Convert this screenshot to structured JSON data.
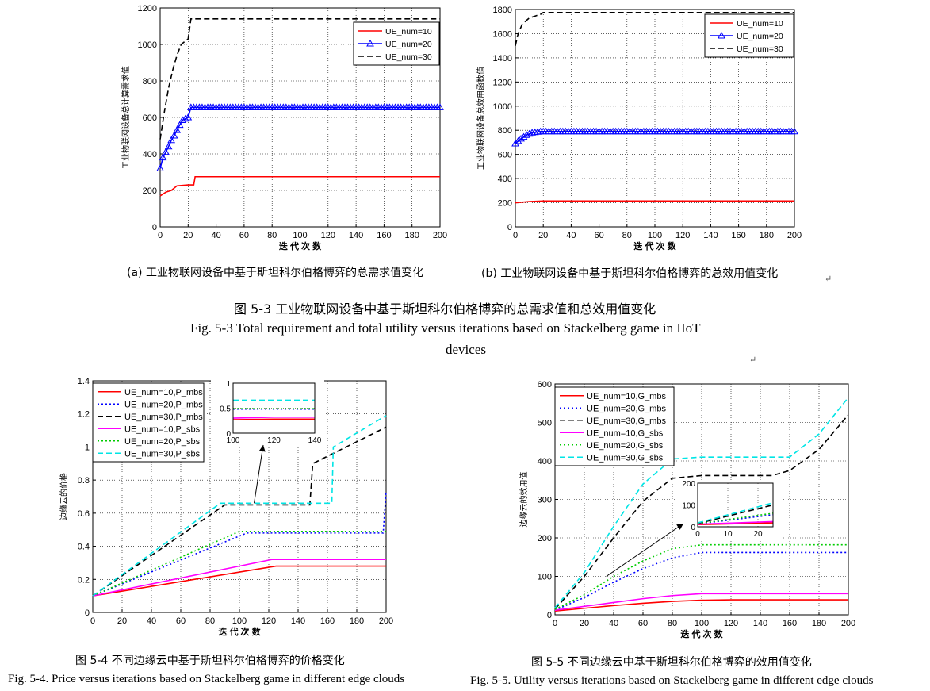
{
  "figures": {
    "fig3a_caption": "(a)  工业物联网设备中基于斯坦科尔伯格博弈的总需求值变化",
    "fig3b_caption": "(b)  工业物联网设备中基于斯坦科尔伯格博弈的总效用值变化",
    "fig3_title_cn": "图 5-3  工业物联网设备中基于斯坦科尔伯格博弈的总需求值和总效用值变化",
    "fig3_title_en": "Fig. 5-3 Total requirement and total utility versus iterations based on Stackelberg game in IIoT",
    "fig3_title_en2": "devices",
    "fig4_title_cn": "图 5-4 不同边缘云中基于斯坦科尔伯格博弈的价格变化",
    "fig4_title_en": "Fig. 5-4. Price versus iterations based on Stackelberg game in different edge clouds",
    "fig5_title_cn": "图 5-5 不同边缘云中基于斯坦科尔伯格博弈的效用值变化",
    "fig5_title_en": "Fig. 5-5. Utility versus iterations based on Stackelberg game in different edge clouds",
    "return_mark": "↵"
  },
  "chart_data": [
    {
      "type": "line",
      "xlabel": "迭 代 次 数",
      "ylabel": "工业物联网设备总计算需求值",
      "xlim": [
        0,
        200
      ],
      "ylim": [
        0,
        1200
      ],
      "xticks": [
        0,
        20,
        40,
        60,
        80,
        100,
        120,
        140,
        160,
        180,
        200
      ],
      "yticks": [
        0,
        200,
        400,
        600,
        800,
        1000,
        1200
      ],
      "grid": true,
      "legend_position": "top-right",
      "series": [
        {
          "name": "UE_num=10",
          "color": "#ff0000",
          "style": "solid",
          "marker": "",
          "points": [
            [
              0,
              170
            ],
            [
              4,
              190
            ],
            [
              8,
              200
            ],
            [
              12,
              225
            ],
            [
              20,
              230
            ],
            [
              24,
              230
            ],
            [
              25,
              275
            ],
            [
              200,
              275
            ]
          ]
        },
        {
          "name": "UE_num=20",
          "color": "#0000ff",
          "style": "solid",
          "marker": "triangle",
          "points": [
            [
              0,
              320
            ],
            [
              2,
              380
            ],
            [
              4,
              410
            ],
            [
              6,
              440
            ],
            [
              8,
              475
            ],
            [
              10,
              500
            ],
            [
              13,
              545
            ],
            [
              16,
              585
            ],
            [
              20,
              600
            ],
            [
              22,
              655
            ],
            [
              200,
              655
            ]
          ]
        },
        {
          "name": "UE_num=30",
          "color": "#000000",
          "style": "dashed",
          "marker": "",
          "points": [
            [
              0,
              480
            ],
            [
              3,
              630
            ],
            [
              6,
              760
            ],
            [
              9,
              860
            ],
            [
              12,
              940
            ],
            [
              15,
              1000
            ],
            [
              20,
              1030
            ],
            [
              22,
              1140
            ],
            [
              200,
              1140
            ]
          ]
        }
      ]
    },
    {
      "type": "line",
      "xlabel": "迭 代 次 数",
      "ylabel": "工业物联网设备总效用函数值",
      "xlim": [
        0,
        200
      ],
      "ylim": [
        0,
        1800
      ],
      "xticks": [
        0,
        20,
        40,
        60,
        80,
        100,
        120,
        140,
        160,
        180,
        200
      ],
      "yticks": [
        0,
        200,
        400,
        600,
        800,
        1000,
        1200,
        1400,
        1600,
        1800
      ],
      "grid": true,
      "legend_position": "top-right",
      "series": [
        {
          "name": "UE_num=10",
          "color": "#ff0000",
          "style": "solid",
          "marker": "",
          "points": [
            [
              0,
              200
            ],
            [
              10,
              210
            ],
            [
              20,
              215
            ],
            [
              200,
              215
            ]
          ]
        },
        {
          "name": "UE_num=20",
          "color": "#0000ff",
          "style": "solid",
          "marker": "triangle",
          "points": [
            [
              0,
              690
            ],
            [
              4,
              730
            ],
            [
              8,
              760
            ],
            [
              12,
              780
            ],
            [
              18,
              790
            ],
            [
              200,
              790
            ]
          ]
        },
        {
          "name": "UE_num=30",
          "color": "#000000",
          "style": "dashed",
          "marker": "",
          "points": [
            [
              0,
              1500
            ],
            [
              2,
              1600
            ],
            [
              5,
              1680
            ],
            [
              10,
              1730
            ],
            [
              18,
              1760
            ],
            [
              20,
              1775
            ],
            [
              200,
              1775
            ]
          ]
        }
      ]
    },
    {
      "type": "line",
      "xlabel": "迭 代 次 数",
      "ylabel": "边缘云的价格",
      "xlim": [
        0,
        200
      ],
      "ylim": [
        0,
        1.4
      ],
      "xticks": [
        0,
        20,
        40,
        60,
        80,
        100,
        120,
        140,
        160,
        180,
        200
      ],
      "yticks": [
        0,
        0.2,
        0.4,
        0.6,
        0.8,
        1,
        1.2,
        1.4
      ],
      "grid": true,
      "legend_position": "top-left",
      "series": [
        {
          "name": "UE_num=10,P_mbs",
          "color": "#ff0000",
          "style": "solid",
          "points": [
            [
              0,
              0.1
            ],
            [
              125,
              0.28
            ],
            [
              200,
              0.28
            ]
          ]
        },
        {
          "name": "UE_num=20,P_mbs",
          "color": "#0000ff",
          "style": "dotted",
          "points": [
            [
              0,
              0.1
            ],
            [
              105,
              0.48
            ],
            [
              198,
              0.48
            ],
            [
              200,
              0.73
            ]
          ]
        },
        {
          "name": "UE_num=30,P_mbs",
          "color": "#000000",
          "style": "dashed",
          "points": [
            [
              0,
              0.1
            ],
            [
              90,
              0.65
            ],
            [
              148,
              0.65
            ],
            [
              150,
              0.9
            ],
            [
              200,
              1.12
            ]
          ]
        },
        {
          "name": "UE_num=10,P_sbs",
          "color": "#ff00ff",
          "style": "solid",
          "points": [
            [
              0,
              0.1
            ],
            [
              122,
              0.32
            ],
            [
              200,
              0.32
            ]
          ]
        },
        {
          "name": "UE_num=20,P_sbs",
          "color": "#00cc00",
          "style": "dotted",
          "points": [
            [
              0,
              0.1
            ],
            [
              100,
              0.49
            ],
            [
              198,
              0.49
            ],
            [
              200,
              0.49
            ]
          ]
        },
        {
          "name": "UE_num=30,P_sbs",
          "color": "#00e5e5",
          "style": "dashed",
          "points": [
            [
              0,
              0.1
            ],
            [
              87,
              0.66
            ],
            [
              163,
              0.66
            ],
            [
              164,
              1.0
            ],
            [
              200,
              1.19
            ]
          ]
        }
      ],
      "inset": {
        "xlim": [
          100,
          140
        ],
        "ylim": [
          0,
          1
        ],
        "xticks": [
          100,
          120,
          140
        ],
        "yticks": [
          0,
          0.5,
          1
        ],
        "series": [
          {
            "name": "UE_num=10,P_mbs",
            "color": "#ff0000",
            "style": "solid",
            "points": [
              [
                100,
                0.27
              ],
              [
                120,
                0.28
              ],
              [
                140,
                0.28
              ]
            ]
          },
          {
            "name": "UE_num=20,P_mbs",
            "color": "#0000ff",
            "style": "dotted",
            "points": [
              [
                100,
                0.48
              ],
              [
                140,
                0.48
              ]
            ]
          },
          {
            "name": "UE_num=30,P_mbs",
            "color": "#000000",
            "style": "dashed",
            "points": [
              [
                100,
                0.65
              ],
              [
                140,
                0.65
              ]
            ]
          },
          {
            "name": "UE_num=10,P_sbs",
            "color": "#ff00ff",
            "style": "solid",
            "points": [
              [
                100,
                0.3
              ],
              [
                120,
                0.32
              ],
              [
                140,
                0.32
              ]
            ]
          },
          {
            "name": "UE_num=20,P_sbs",
            "color": "#00cc00",
            "style": "dotted",
            "points": [
              [
                100,
                0.49
              ],
              [
                140,
                0.49
              ]
            ]
          },
          {
            "name": "UE_num=30,P_sbs",
            "color": "#00e5e5",
            "style": "dashed",
            "points": [
              [
                100,
                0.66
              ],
              [
                140,
                0.66
              ]
            ]
          }
        ]
      }
    },
    {
      "type": "line",
      "xlabel": "迭 代 次 数",
      "ylabel": "边缘云的效用值",
      "xlim": [
        0,
        200
      ],
      "ylim": [
        0,
        600
      ],
      "xticks": [
        0,
        20,
        40,
        60,
        80,
        100,
        120,
        140,
        160,
        180,
        200
      ],
      "yticks": [
        0,
        100,
        200,
        300,
        400,
        500,
        600
      ],
      "grid": true,
      "legend_position": "top-left",
      "series": [
        {
          "name": "UE_num=10,G_mbs",
          "color": "#ff0000",
          "style": "solid",
          "points": [
            [
              0,
              10
            ],
            [
              20,
              17
            ],
            [
              40,
              24
            ],
            [
              60,
              30
            ],
            [
              80,
              35
            ],
            [
              100,
              38
            ],
            [
              120,
              39
            ],
            [
              200,
              39
            ]
          ]
        },
        {
          "name": "UE_num=20,G_mbs",
          "color": "#0000ff",
          "style": "dotted",
          "points": [
            [
              0,
              12
            ],
            [
              20,
              45
            ],
            [
              40,
              85
            ],
            [
              60,
              120
            ],
            [
              80,
              148
            ],
            [
              100,
              162
            ],
            [
              200,
              162
            ]
          ]
        },
        {
          "name": "UE_num=30,G_mbs",
          "color": "#000000",
          "style": "dashed",
          "points": [
            [
              0,
              15
            ],
            [
              20,
              100
            ],
            [
              40,
              200
            ],
            [
              60,
              295
            ],
            [
              80,
              355
            ],
            [
              100,
              362
            ],
            [
              148,
              362
            ],
            [
              160,
              375
            ],
            [
              180,
              430
            ],
            [
              200,
              520
            ]
          ]
        },
        {
          "name": "UE_num=10,G_sbs",
          "color": "#ff00ff",
          "style": "solid",
          "points": [
            [
              0,
              12
            ],
            [
              20,
              22
            ],
            [
              40,
              32
            ],
            [
              60,
              42
            ],
            [
              80,
              50
            ],
            [
              100,
              55
            ],
            [
              200,
              55
            ]
          ]
        },
        {
          "name": "UE_num=20,G_sbs",
          "color": "#00cc00",
          "style": "dotted",
          "points": [
            [
              0,
              14
            ],
            [
              20,
              52
            ],
            [
              40,
              100
            ],
            [
              60,
              140
            ],
            [
              80,
              172
            ],
            [
              100,
              182
            ],
            [
              200,
              182
            ]
          ]
        },
        {
          "name": "UE_num=30,G_sbs",
          "color": "#00e5e5",
          "style": "dashed",
          "points": [
            [
              0,
              18
            ],
            [
              20,
              110
            ],
            [
              40,
              230
            ],
            [
              60,
              340
            ],
            [
              80,
              405
            ],
            [
              100,
              410
            ],
            [
              160,
              410
            ],
            [
              180,
              470
            ],
            [
              200,
              565
            ]
          ]
        }
      ],
      "inset": {
        "xlim": [
          0,
          25
        ],
        "ylim": [
          0,
          200
        ],
        "xticks": [
          0,
          10,
          20
        ],
        "yticks": [
          0,
          100,
          200
        ],
        "series": [
          {
            "name": "UE_num=10,G_mbs",
            "color": "#ff0000",
            "style": "solid",
            "points": [
              [
                0,
                10
              ],
              [
                25,
                18
              ]
            ]
          },
          {
            "name": "UE_num=20,G_mbs",
            "color": "#0000ff",
            "style": "dotted",
            "points": [
              [
                0,
                13
              ],
              [
                25,
                55
              ]
            ]
          },
          {
            "name": "UE_num=30,G_mbs",
            "color": "#000000",
            "style": "dashed",
            "points": [
              [
                0,
                15
              ],
              [
                25,
                100
              ]
            ]
          },
          {
            "name": "UE_num=10,G_sbs",
            "color": "#ff00ff",
            "style": "solid",
            "points": [
              [
                0,
                12
              ],
              [
                25,
                24
              ]
            ]
          },
          {
            "name": "UE_num=20,G_sbs",
            "color": "#00cc00",
            "style": "dotted",
            "points": [
              [
                0,
                14
              ],
              [
                25,
                62
              ]
            ]
          },
          {
            "name": "UE_num=30,G_sbs",
            "color": "#00e5e5",
            "style": "dashed",
            "points": [
              [
                0,
                18
              ],
              [
                25,
                110
              ]
            ]
          }
        ]
      }
    }
  ]
}
